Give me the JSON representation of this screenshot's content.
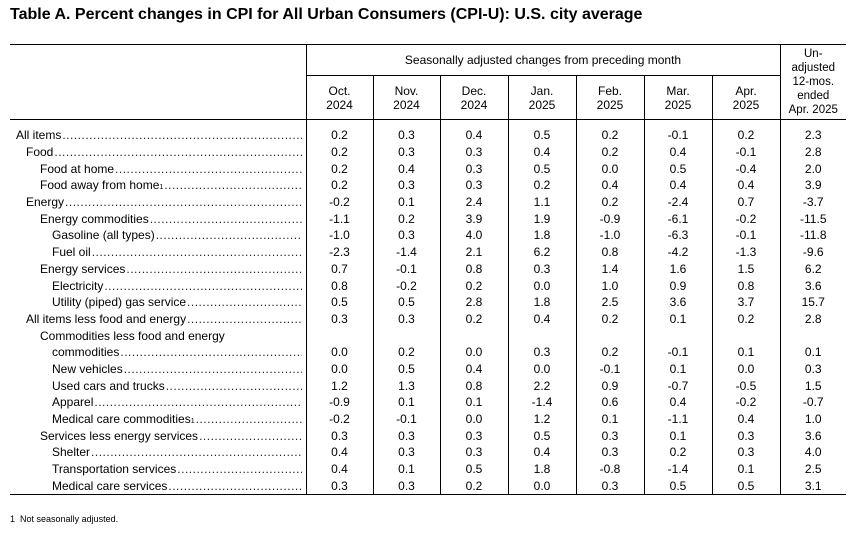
{
  "title": "Table A. Percent changes in CPI for All Urban Consumers (CPI-U): U.S. city average",
  "headers": {
    "seasonally_adjusted": "Seasonally adjusted changes from preceding month",
    "unadjusted": [
      "Un-",
      "adjusted",
      "12-mos.",
      "ended",
      "Apr. 2025"
    ],
    "months": [
      [
        "Oct.",
        "2024"
      ],
      [
        "Nov.",
        "2024"
      ],
      [
        "Dec.",
        "2024"
      ],
      [
        "Jan.",
        "2025"
      ],
      [
        "Feb.",
        "2025"
      ],
      [
        "Mar.",
        "2025"
      ],
      [
        "Apr.",
        "2025"
      ]
    ]
  },
  "rows": [
    {
      "label": "All items",
      "indent": 0,
      "values": [
        "0.2",
        "0.3",
        "0.4",
        "0.5",
        "0.2",
        "-0.1",
        "0.2",
        "2.3"
      ]
    },
    {
      "label": "Food",
      "indent": 1,
      "values": [
        "0.2",
        "0.3",
        "0.3",
        "0.4",
        "0.2",
        "0.4",
        "-0.1",
        "2.8"
      ]
    },
    {
      "label": "Food at home",
      "indent": 2,
      "values": [
        "0.2",
        "0.4",
        "0.3",
        "0.5",
        "0.0",
        "0.5",
        "-0.4",
        "2.0"
      ]
    },
    {
      "label": "Food away from home",
      "indent": 2,
      "sup": "1",
      "values": [
        "0.2",
        "0.3",
        "0.3",
        "0.2",
        "0.4",
        "0.4",
        "0.4",
        "3.9"
      ]
    },
    {
      "label": "Energy",
      "indent": 1,
      "values": [
        "-0.2",
        "0.1",
        "2.4",
        "1.1",
        "0.2",
        "-2.4",
        "0.7",
        "-3.7"
      ]
    },
    {
      "label": "Energy commodities",
      "indent": 2,
      "values": [
        "-1.1",
        "0.2",
        "3.9",
        "1.9",
        "-0.9",
        "-6.1",
        "-0.2",
        "-11.5"
      ]
    },
    {
      "label": "Gasoline (all types)",
      "indent": 3,
      "values": [
        "-1.0",
        "0.3",
        "4.0",
        "1.8",
        "-1.0",
        "-6.3",
        "-0.1",
        "-11.8"
      ]
    },
    {
      "label": "Fuel oil",
      "indent": 3,
      "values": [
        "-2.3",
        "-1.4",
        "2.1",
        "6.2",
        "0.8",
        "-4.2",
        "-1.3",
        "-9.6"
      ]
    },
    {
      "label": "Energy services",
      "indent": 2,
      "values": [
        "0.7",
        "-0.1",
        "0.8",
        "0.3",
        "1.4",
        "1.6",
        "1.5",
        "6.2"
      ]
    },
    {
      "label": "Electricity",
      "indent": 3,
      "values": [
        "0.8",
        "-0.2",
        "0.2",
        "0.0",
        "1.0",
        "0.9",
        "0.8",
        "3.6"
      ]
    },
    {
      "label": "Utility (piped) gas service",
      "indent": 3,
      "values": [
        "0.5",
        "0.5",
        "2.8",
        "1.8",
        "2.5",
        "3.6",
        "3.7",
        "15.7"
      ]
    },
    {
      "label": "All items less food and energy",
      "indent": 1,
      "values": [
        "0.3",
        "0.3",
        "0.2",
        "0.4",
        "0.2",
        "0.1",
        "0.2",
        "2.8"
      ]
    },
    {
      "label": "Commodities less food and energy",
      "indent": 2,
      "values": []
    },
    {
      "label": "commodities",
      "indent": 3,
      "values": [
        "0.0",
        "0.2",
        "0.0",
        "0.3",
        "0.2",
        "-0.1",
        "0.1",
        "0.1"
      ]
    },
    {
      "label": "New vehicles",
      "indent": 3,
      "values": [
        "0.0",
        "0.5",
        "0.4",
        "0.0",
        "-0.1",
        "0.1",
        "0.0",
        "0.3"
      ]
    },
    {
      "label": "Used cars and trucks",
      "indent": 3,
      "values": [
        "1.2",
        "1.3",
        "0.8",
        "2.2",
        "0.9",
        "-0.7",
        "-0.5",
        "1.5"
      ]
    },
    {
      "label": "Apparel",
      "indent": 3,
      "values": [
        "-0.9",
        "0.1",
        "0.1",
        "-1.4",
        "0.6",
        "0.4",
        "-0.2",
        "-0.7"
      ]
    },
    {
      "label": "Medical care commodities",
      "indent": 4,
      "sup": "1",
      "values": [
        "-0.2",
        "-0.1",
        "0.0",
        "1.2",
        "0.1",
        "-1.1",
        "0.4",
        "1.0"
      ]
    },
    {
      "label": "Services less energy services",
      "indent": 2,
      "values": [
        "0.3",
        "0.3",
        "0.3",
        "0.5",
        "0.3",
        "0.1",
        "0.3",
        "3.6"
      ]
    },
    {
      "label": "Shelter",
      "indent": 3,
      "values": [
        "0.4",
        "0.3",
        "0.3",
        "0.4",
        "0.3",
        "0.2",
        "0.3",
        "4.0"
      ]
    },
    {
      "label": "Transportation services",
      "indent": 3,
      "values": [
        "0.4",
        "0.1",
        "0.5",
        "1.8",
        "-0.8",
        "-1.4",
        "0.1",
        "2.5"
      ]
    },
    {
      "label": "Medical care services",
      "indent": 3,
      "values": [
        "0.3",
        "0.3",
        "0.2",
        "0.0",
        "0.3",
        "0.5",
        "0.5",
        "3.1"
      ]
    }
  ],
  "footnote": {
    "marker": "1",
    "text": "Not seasonally adjusted."
  }
}
